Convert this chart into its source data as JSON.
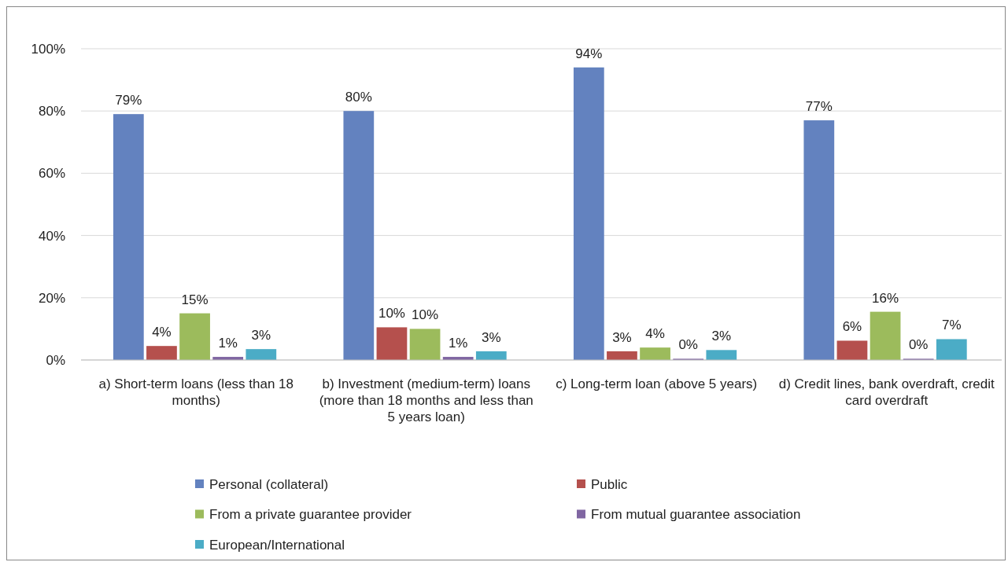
{
  "chart_data": {
    "type": "bar",
    "categories": [
      "a) Short-term loans (less than 18 months)",
      "b) Investment (medium-term) loans (more than 18 months and less than 5 years loan)",
      "c) Long-term loan (above 5 years)",
      "d) Credit lines, bank overdraft, credit card overdraft"
    ],
    "series": [
      {
        "name": "Personal (collateral)",
        "color": "#6382bf",
        "values": [
          79,
          80,
          94,
          77
        ],
        "value_labels": [
          "79%",
          "80%",
          "94%",
          "77%"
        ]
      },
      {
        "name": "Public",
        "color": "#b5504d",
        "values": [
          4.5,
          10.5,
          2.8,
          6.2
        ],
        "value_labels": [
          "4%",
          "10%",
          "3%",
          "6%"
        ]
      },
      {
        "name": "From a private guarantee provider",
        "color": "#9cbb5c",
        "values": [
          15,
          10,
          4,
          15.5
        ],
        "value_labels": [
          "15%",
          "10%",
          "4%",
          "16%"
        ]
      },
      {
        "name": "From mutual guarantee association",
        "color": "#8066a2",
        "values": [
          1,
          1,
          0.4,
          0.4
        ],
        "value_labels": [
          "1%",
          "1%",
          "0%",
          "0%"
        ]
      },
      {
        "name": "European/International",
        "color": "#4bacc6",
        "values": [
          3.5,
          2.8,
          3.2,
          6.7
        ],
        "value_labels": [
          "3%",
          "3%",
          "3%",
          "7%"
        ]
      }
    ],
    "ylim": [
      0,
      100
    ],
    "yticks": [
      {
        "value": 0,
        "label": "0%"
      },
      {
        "value": 20,
        "label": "20%"
      },
      {
        "value": 40,
        "label": "40%"
      },
      {
        "value": 60,
        "label": "60%"
      },
      {
        "value": 80,
        "label": "80%"
      },
      {
        "value": 100,
        "label": "100%"
      }
    ],
    "grid": "y",
    "legend": "bottom"
  }
}
